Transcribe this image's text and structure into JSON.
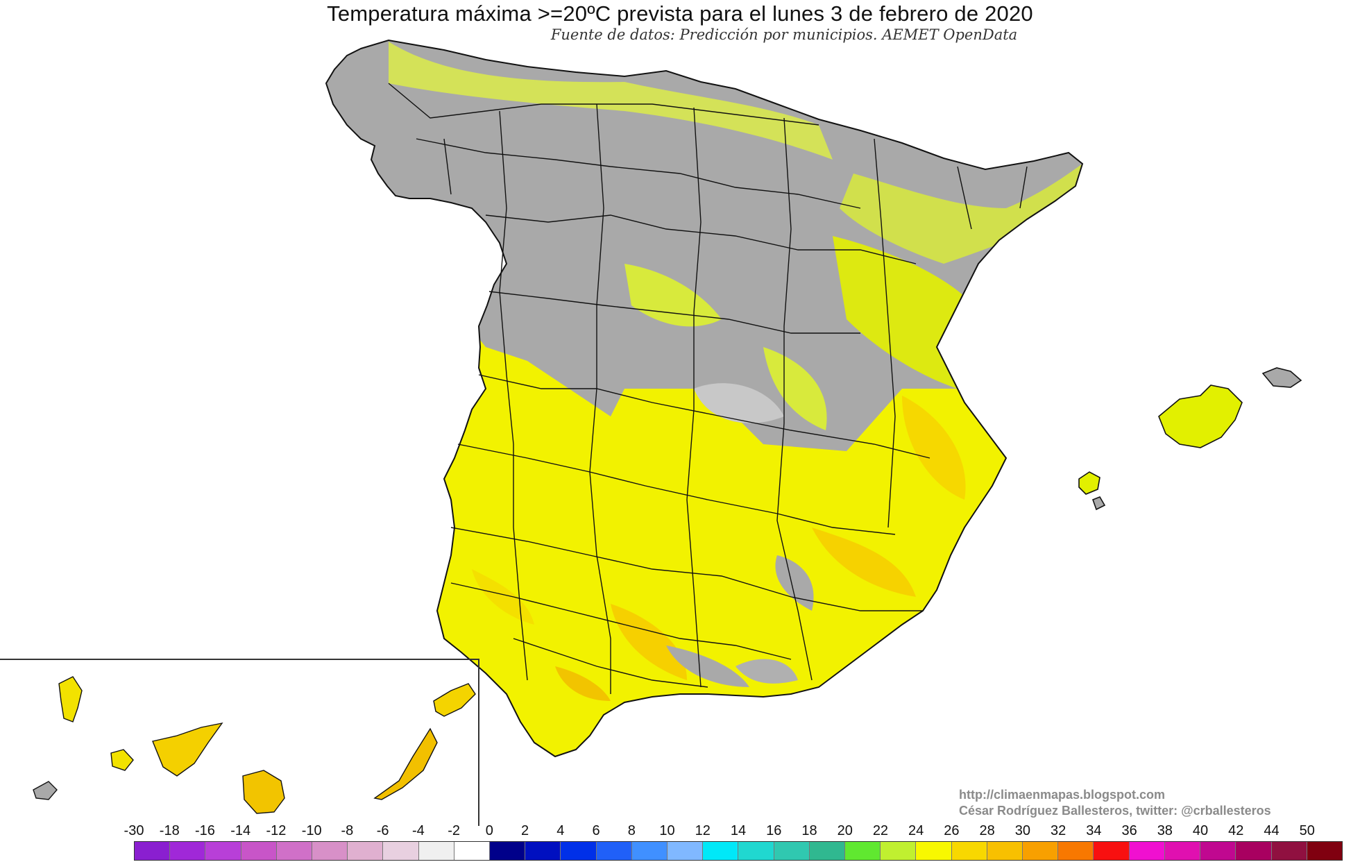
{
  "title": "Temperatura máxima >=20ºC prevista para el lunes 3 de febrero de 2020",
  "subtitle": "Fuente de datos: Predicción por municipios. AEMET OpenData",
  "credits": {
    "url": "http://climaenmapas.blogspot.com",
    "author": "César Rodríguez Ballesteros, twitter: @crballesteros"
  },
  "map": {
    "region": "Spain",
    "inset": "Canary Islands",
    "below_threshold_color": "#a8a8a8",
    "border_color": "#111111"
  },
  "legend": {
    "labels": [
      "-30",
      "-18",
      "-16",
      "-14",
      "-12",
      "-10",
      "-8",
      "-6",
      "-4",
      "-2",
      "0",
      "2",
      "4",
      "6",
      "8",
      "10",
      "12",
      "14",
      "16",
      "18",
      "20",
      "22",
      "24",
      "26",
      "28",
      "30",
      "32",
      "34",
      "36",
      "38",
      "40",
      "42",
      "44",
      "50"
    ],
    "colors": [
      "#8a1fd0",
      "#a028d8",
      "#b83fd8",
      "#c855c8",
      "#d070c8",
      "#d890c8",
      "#e0b0d0",
      "#e8d0e0",
      "#f0f0f0",
      "#ffffff",
      "#00008a",
      "#0010c0",
      "#0030e8",
      "#2060f8",
      "#4090ff",
      "#80b8ff",
      "#00e8f8",
      "#20d8d0",
      "#30c8b0",
      "#30b890",
      "#60e830",
      "#c0f030",
      "#f8f800",
      "#f8d800",
      "#f8c000",
      "#f8a000",
      "#f87800",
      "#f81010",
      "#f010d0",
      "#e010b0",
      "#c00890",
      "#a80060",
      "#901040",
      "#800010"
    ]
  }
}
